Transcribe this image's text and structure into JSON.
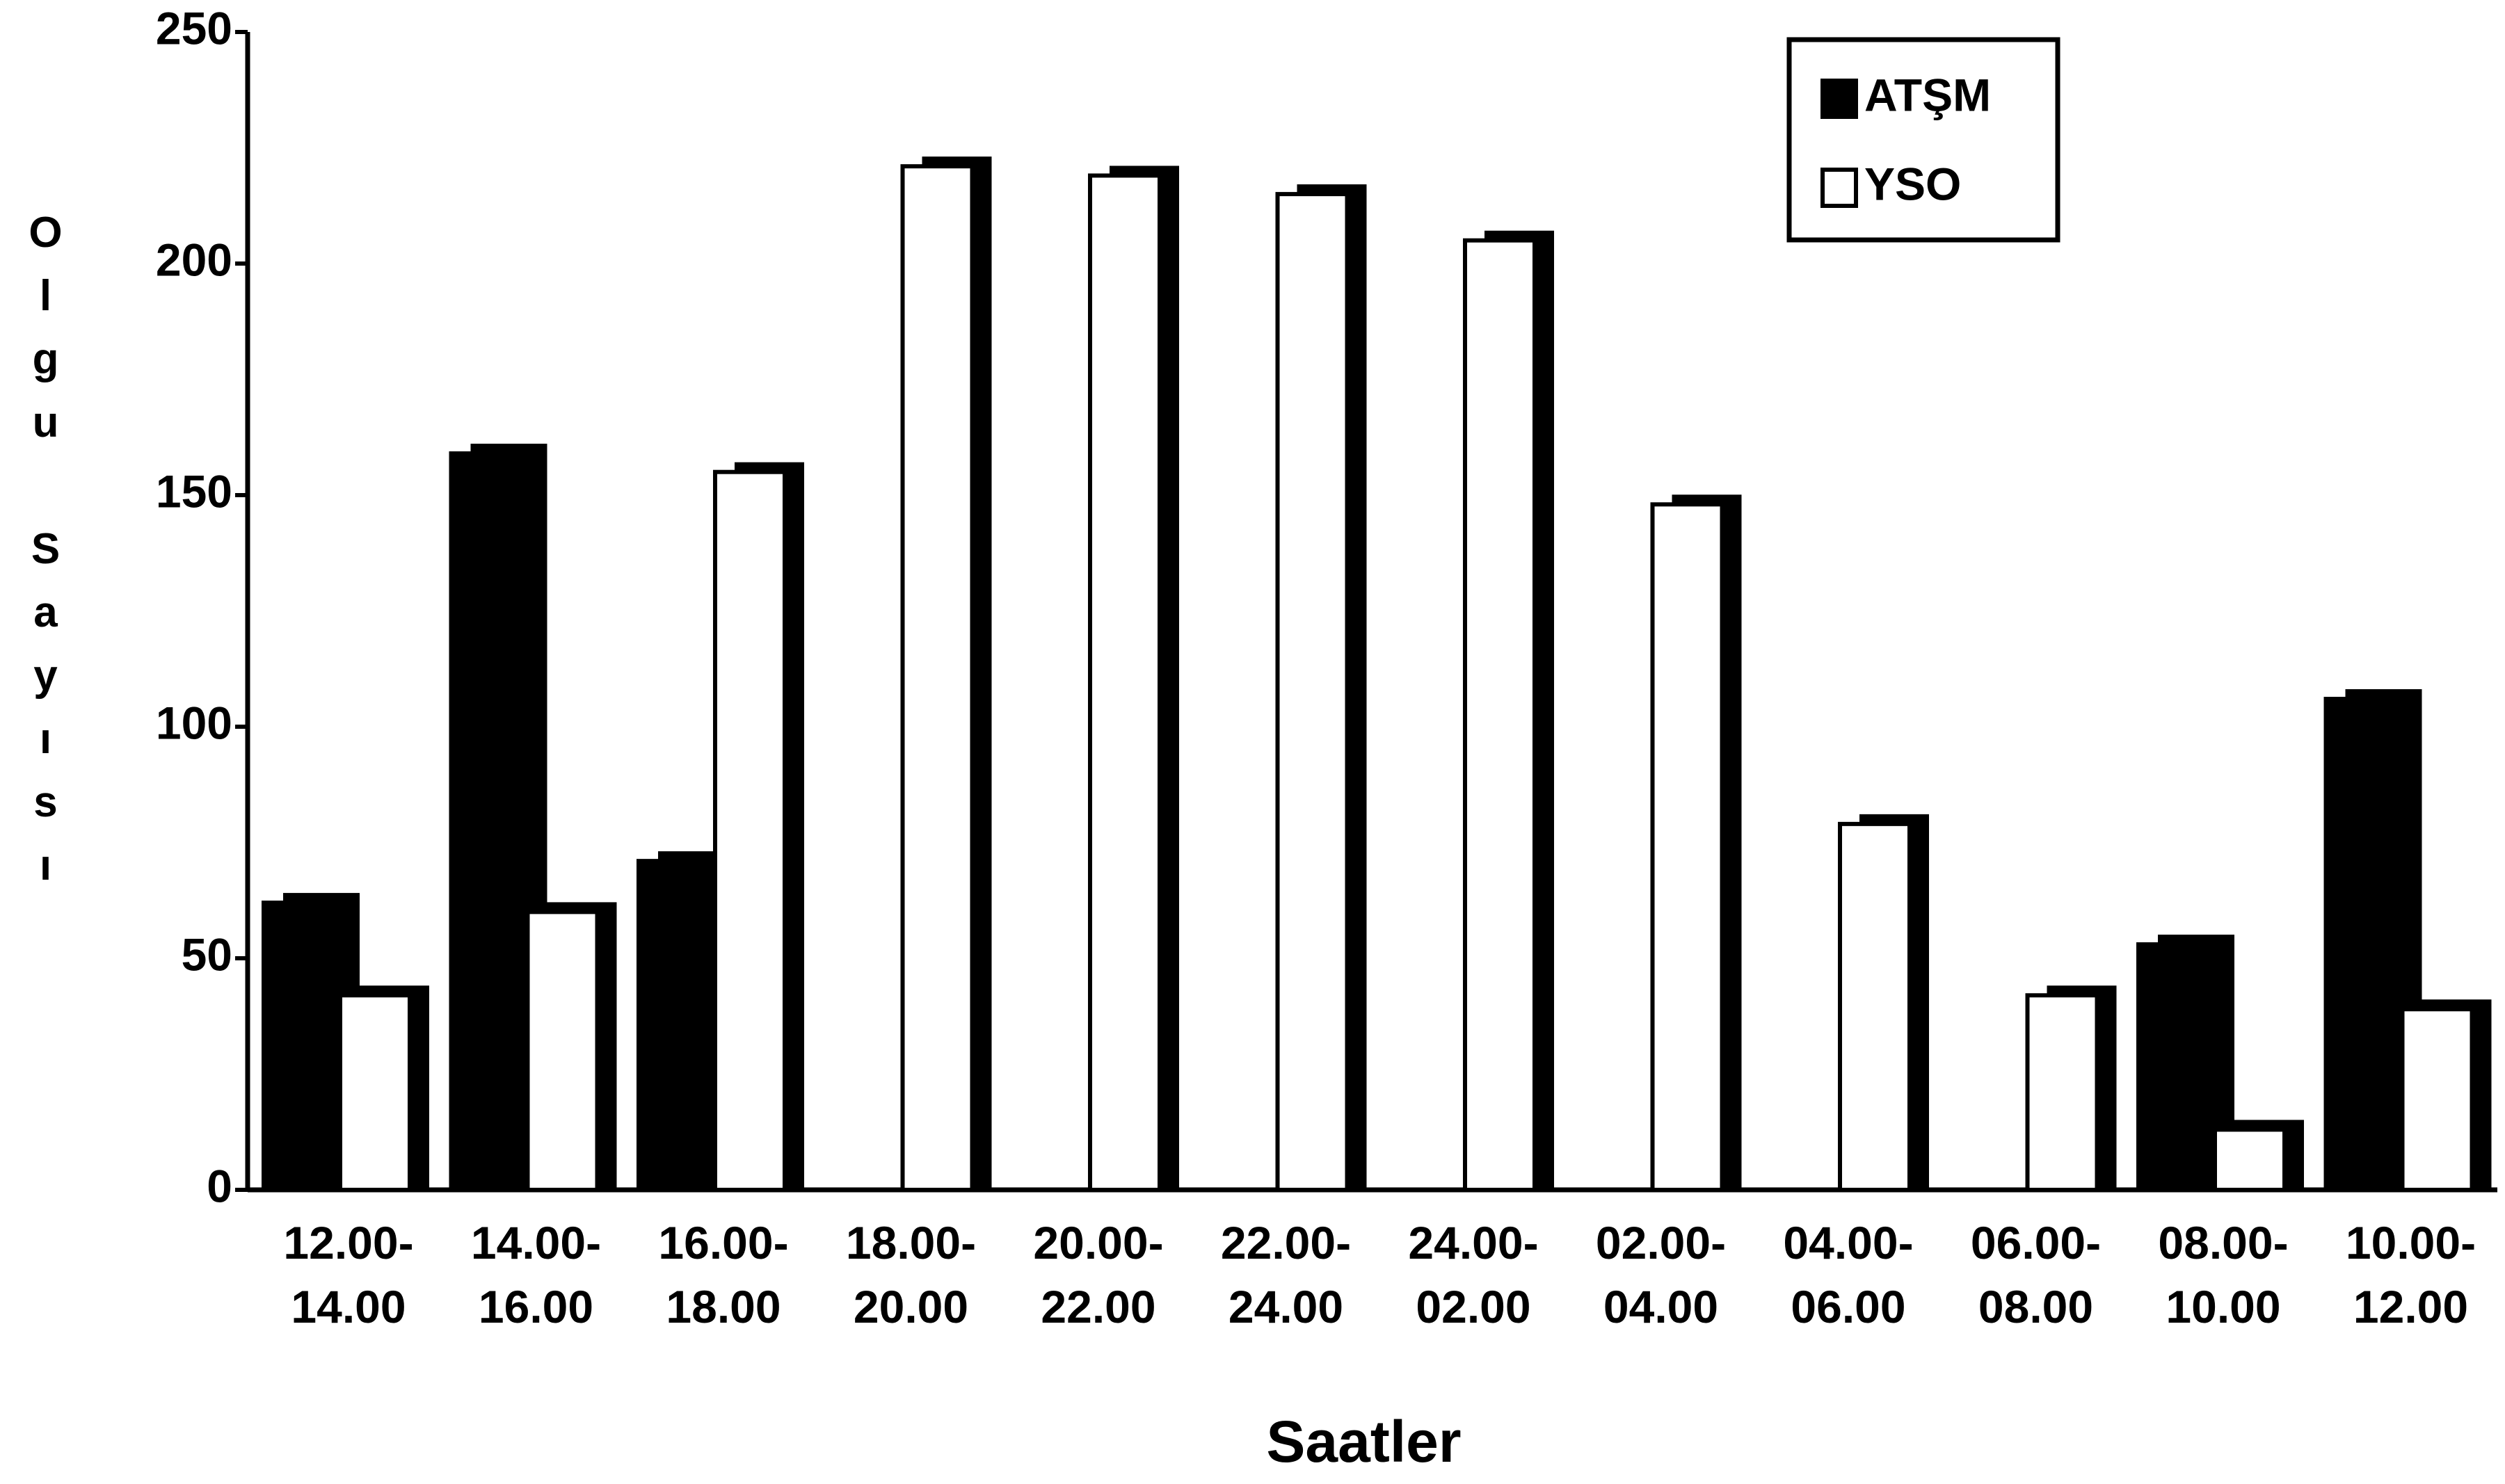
{
  "chart_data": {
    "type": "bar",
    "categories": [
      "12.00-\n14.00",
      "14.00-\n16.00",
      "16.00-\n18.00",
      "18.00-\n20.00",
      "20.00-\n22.00",
      "22.00-\n24.00",
      "24.00-\n02.00",
      "02.00-\n04.00",
      "04.00-\n06.00",
      "06.00-\n08.00",
      "08.00-\n10.00",
      "10.00-\n12.00"
    ],
    "series": [
      {
        "name": "ATŞM",
        "color": "#000000",
        "values": [
          62,
          159,
          71,
          0,
          0,
          0,
          0,
          0,
          0,
          0,
          53,
          106
        ]
      },
      {
        "name": "YSO",
        "color": "#ffffff",
        "values": [
          42,
          60,
          155,
          221,
          219,
          215,
          205,
          148,
          79,
          42,
          13,
          39
        ]
      }
    ],
    "xlabel": "Saatler",
    "ylabel": "Olgu Sayısı",
    "ylim": [
      0,
      250
    ],
    "yticks": [
      0,
      50,
      100,
      150,
      200,
      250
    ],
    "legend": "upper right"
  }
}
